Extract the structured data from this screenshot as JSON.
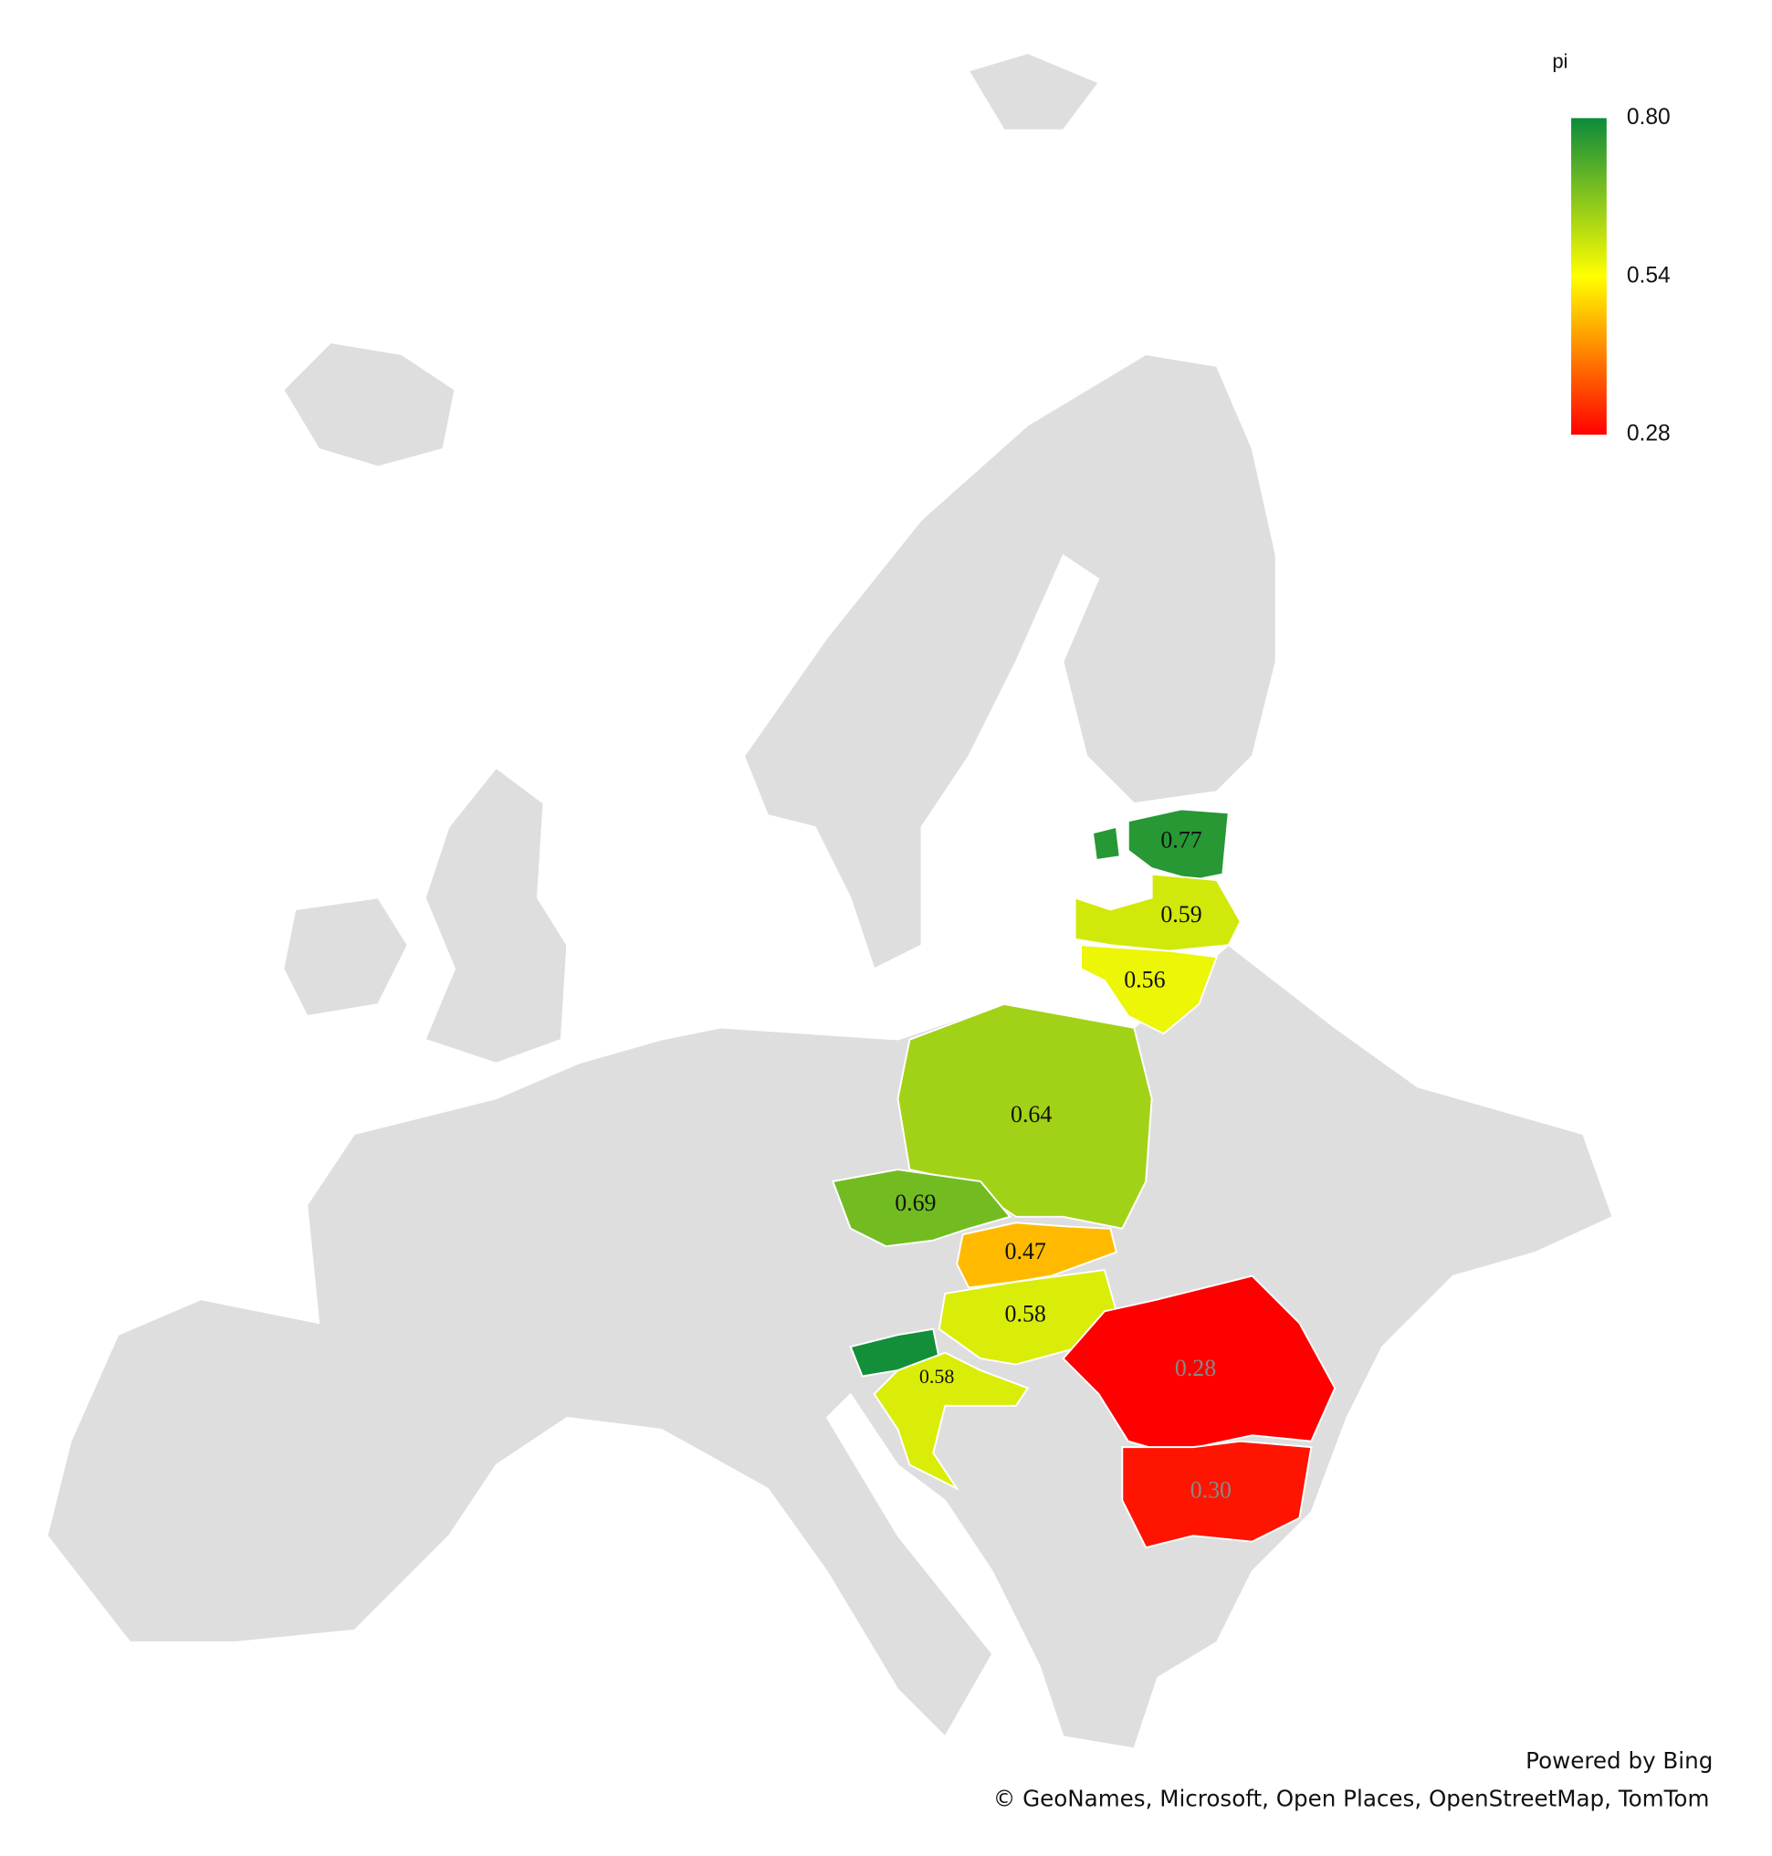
{
  "chart_data": {
    "type": "choropleth",
    "values": [
      0.77,
      0.59,
      0.56,
      0.64,
      0.69,
      0.47,
      0.58,
      0.79,
      0.58,
      0.28,
      0.3
    ],
    "value_labels": [
      "0.77",
      "0.59",
      "0.56",
      "0.64",
      "0.69",
      "0.47",
      "0.58",
      null,
      "0.58",
      "0.28",
      "0.30"
    ],
    "legend": {
      "title": "pi",
      "range": [
        0.28,
        0.8
      ],
      "colors": [
        "#ff0000",
        "#ffff00",
        "#0b8a3b"
      ],
      "ticks": [
        {
          "value": 0.8,
          "label": "0.80"
        },
        {
          "value": 0.54,
          "label": "0.54"
        },
        {
          "value": 0.28,
          "label": "0.28"
        }
      ]
    },
    "attribution": [
      "Powered by Bing",
      "© GeoNames, Microsoft, Open Places, OpenStreetMap, TomTom"
    ]
  }
}
